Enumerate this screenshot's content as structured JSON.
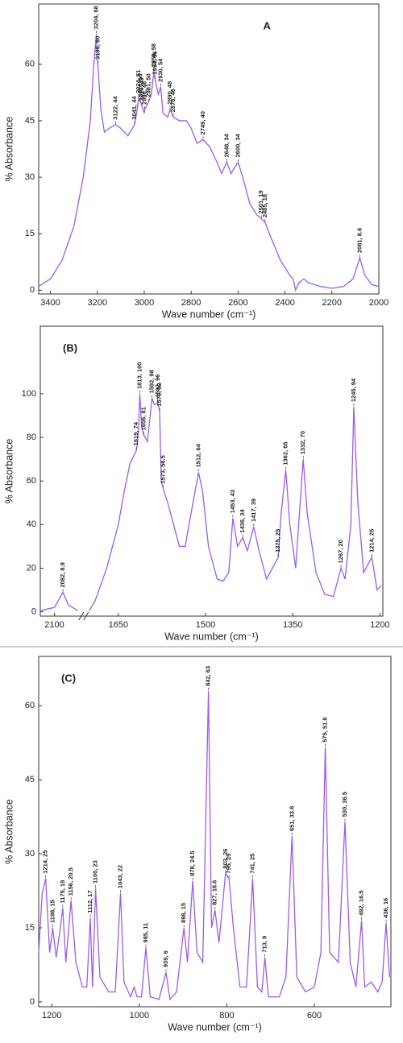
{
  "chart_data": [
    {
      "type": "line",
      "panel_label": "A",
      "ylabel": "% Absorbance",
      "xlabel": "Wave number (cm⁻¹)",
      "xlim": [
        3450,
        2000
      ],
      "xticks": [
        3400,
        3200,
        3000,
        2800,
        2600,
        2400,
        2200,
        2000
      ],
      "ylim": [
        -1,
        76
      ],
      "yticks": [
        0,
        15,
        30,
        45,
        60
      ],
      "x": [
        3450,
        3400,
        3350,
        3300,
        3260,
        3230,
        3215,
        3204,
        3198,
        3185,
        3170,
        3150,
        3122,
        3100,
        3070,
        3041,
        3030,
        3024,
        3016,
        3010,
        3000,
        2998,
        2981,
        2970,
        2959,
        2954,
        2940,
        2930,
        2920,
        2900,
        2890,
        2876,
        2850,
        2820,
        2800,
        2775,
        2749,
        2720,
        2690,
        2670,
        2648,
        2630,
        2600,
        2580,
        2550,
        2520,
        2501,
        2485,
        2460,
        2420,
        2380,
        2365,
        2355,
        2340,
        2320,
        2300,
        2250,
        2200,
        2150,
        2110,
        2081,
        2060,
        2030,
        2000
      ],
      "series": [
        {
          "color": "#9d5ce6",
          "values": [
            1,
            3,
            8,
            17,
            30,
            45,
            60,
            68,
            60,
            48,
            42,
            43,
            44,
            43,
            41,
            44,
            48,
            51,
            50,
            49,
            47,
            48,
            50,
            52,
            58,
            56,
            52,
            54,
            47,
            46,
            48,
            46,
            45,
            45,
            43,
            39,
            40,
            38,
            34,
            31,
            34,
            31,
            34,
            30,
            23,
            20,
            19,
            18,
            14,
            8,
            4,
            3,
            0,
            2,
            3,
            2,
            1,
            0.5,
            1,
            3,
            8.6,
            4,
            1.5,
            1
          ]
        }
      ],
      "annotations": [
        {
          "x": 3204,
          "y": 68,
          "label": "3204, 68"
        },
        {
          "x": 3198,
          "y": 60,
          "label": "3198, 60"
        },
        {
          "x": 3122,
          "y": 44,
          "label": "3122, 44"
        },
        {
          "x": 3041,
          "y": 44,
          "label": "3041, 44"
        },
        {
          "x": 3024,
          "y": 51,
          "label": "3024, 51"
        },
        {
          "x": 3016,
          "y": 50,
          "label": "3016, 50"
        },
        {
          "x": 3010,
          "y": 49,
          "label": "3010, 49"
        },
        {
          "x": 2959,
          "y": 58,
          "label": "2959, 58"
        },
        {
          "x": 2954,
          "y": 56,
          "label": "2954, 56"
        },
        {
          "x": 2930,
          "y": 54,
          "label": "2930, 54"
        },
        {
          "x": 2998,
          "y": 48,
          "label": "2998, 48"
        },
        {
          "x": 2981,
          "y": 50,
          "label": "2981, 50"
        },
        {
          "x": 2890,
          "y": 48,
          "label": "2890, 48"
        },
        {
          "x": 2876,
          "y": 46,
          "label": "2876, 46"
        },
        {
          "x": 2749,
          "y": 40,
          "label": "2749, 40"
        },
        {
          "x": 2648,
          "y": 34,
          "label": "2648, 34"
        },
        {
          "x": 2600,
          "y": 34,
          "label": "2600, 34"
        },
        {
          "x": 2501,
          "y": 19,
          "label": "2501, 19"
        },
        {
          "x": 2485,
          "y": 18,
          "label": "2485, 18"
        },
        {
          "x": 2081,
          "y": 8.6,
          "label": "2081, 8.6"
        }
      ]
    },
    {
      "type": "line",
      "panel_label": "(B)",
      "ylabel": "% Absorbance",
      "xlabel": "Wave number (cm⁻¹)",
      "xlim": [
        2130,
        1195
      ],
      "xbreak": [
        2050,
        1700
      ],
      "xticks": [
        2100,
        1650,
        1500,
        1350,
        1200
      ],
      "ylim": [
        -2,
        131
      ],
      "yticks": [
        0,
        20,
        40,
        60,
        80,
        100
      ],
      "x": [
        2130,
        2100,
        2082,
        2070,
        2050,
        1700,
        1690,
        1670,
        1650,
        1640,
        1630,
        1619,
        1616,
        1613,
        1610,
        1606,
        1600,
        1592,
        1588,
        1582,
        1579,
        1576,
        1573,
        1565,
        1555,
        1545,
        1535,
        1525,
        1512,
        1505,
        1495,
        1480,
        1470,
        1460,
        1453,
        1445,
        1436,
        1428,
        1417,
        1408,
        1395,
        1385,
        1375,
        1370,
        1362,
        1355,
        1345,
        1332,
        1325,
        1310,
        1295,
        1280,
        1267,
        1260,
        1250,
        1245,
        1238,
        1228,
        1214,
        1205,
        1198
      ],
      "series": [
        {
          "color": "#9d5ce6",
          "values": [
            0.5,
            2,
            8.9,
            3,
            0.5,
            0.5,
            5,
            20,
            40,
            55,
            68,
            74,
            80,
            100,
            85,
            81,
            78,
            98,
            95,
            96,
            92,
            60,
            56.5,
            50,
            40,
            30,
            30,
            45,
            64,
            55,
            30,
            15,
            14,
            18,
            43,
            30,
            34,
            28,
            39,
            28,
            15,
            20,
            25,
            45,
            65,
            40,
            20,
            70,
            45,
            18,
            8,
            7,
            20,
            15,
            40,
            94,
            50,
            18,
            25,
            10,
            12
          ]
        }
      ],
      "annotations": [
        {
          "x": 2082,
          "y": 8.9,
          "label": "2082, 8.9"
        },
        {
          "x": 1619,
          "y": 74,
          "label": "1619, 74"
        },
        {
          "x": 1613,
          "y": 100,
          "label": "1613, 100"
        },
        {
          "x": 1606,
          "y": 81,
          "label": "1606, 81"
        },
        {
          "x": 1592,
          "y": 98,
          "label": "1592, 98"
        },
        {
          "x": 1582,
          "y": 96,
          "label": "1582, 96"
        },
        {
          "x": 1579,
          "y": 92,
          "label": "1579, 92"
        },
        {
          "x": 1573,
          "y": 56.5,
          "label": "1573, 56.5"
        },
        {
          "x": 1512,
          "y": 64,
          "label": "1512, 64"
        },
        {
          "x": 1453,
          "y": 43,
          "label": "1453, 43"
        },
        {
          "x": 1436,
          "y": 34,
          "label": "1436, 34"
        },
        {
          "x": 1417,
          "y": 39,
          "label": "1417, 39"
        },
        {
          "x": 1375,
          "y": 25,
          "label": "1375, 25"
        },
        {
          "x": 1362,
          "y": 65,
          "label": "1362, 65"
        },
        {
          "x": 1332,
          "y": 70,
          "label": "1332, 70"
        },
        {
          "x": 1267,
          "y": 20,
          "label": "1267, 20"
        },
        {
          "x": 1245,
          "y": 94,
          "label": "1245, 94"
        },
        {
          "x": 1214,
          "y": 25,
          "label": "1214, 25"
        }
      ]
    },
    {
      "type": "line",
      "panel_label": "(C)",
      "ylabel": "% Absorbance",
      "xlabel": "Wave number (cm⁻¹)",
      "xlim": [
        1230,
        425
      ],
      "xticks": [
        1200,
        1000,
        800,
        600
      ],
      "ylim": [
        -1,
        70
      ],
      "yticks": [
        0,
        15,
        30,
        45,
        60
      ],
      "x": [
        1230,
        1222,
        1214,
        1205,
        1198,
        1190,
        1182,
        1175,
        1168,
        1156,
        1145,
        1130,
        1120,
        1112,
        1107,
        1100,
        1090,
        1070,
        1055,
        1043,
        1035,
        1020,
        1012,
        1005,
        995,
        985,
        975,
        955,
        939,
        930,
        915,
        898,
        890,
        878,
        868,
        855,
        842,
        835,
        827,
        818,
        803,
        795,
        785,
        770,
        755,
        741,
        730,
        720,
        713,
        705,
        680,
        665,
        651,
        640,
        620,
        600,
        585,
        575,
        565,
        545,
        530,
        518,
        505,
        492,
        485,
        470,
        455,
        445,
        436,
        428
      ],
      "series": [
        {
          "color": "#9d5ce6",
          "values": [
            10,
            22,
            25,
            10,
            15,
            9,
            14,
            19,
            8,
            20.5,
            8,
            3,
            3,
            17,
            3,
            23,
            5,
            2,
            2,
            22,
            4,
            1,
            3,
            1,
            1,
            11,
            1,
            0.5,
            6,
            0.5,
            2,
            15,
            8,
            24.5,
            10,
            8,
            63,
            15,
            18.6,
            12,
            26,
            25,
            15,
            3,
            3,
            25,
            3,
            2,
            9,
            1,
            1,
            5,
            33.6,
            5,
            2,
            3,
            10,
            51.6,
            10,
            8,
            36.5,
            8,
            3,
            16.5,
            3,
            4,
            2,
            4,
            16,
            5
          ]
        }
      ],
      "annotations": [
        {
          "x": 1214,
          "y": 25,
          "label": "1214, 25"
        },
        {
          "x": 1198,
          "y": 15,
          "label": "1198, 15"
        },
        {
          "x": 1175,
          "y": 19,
          "label": "1175, 19"
        },
        {
          "x": 1156,
          "y": 20.5,
          "label": "1156, 20.5"
        },
        {
          "x": 1112,
          "y": 17,
          "label": "1112, 17"
        },
        {
          "x": 1100,
          "y": 23,
          "label": "1100, 23"
        },
        {
          "x": 1043,
          "y": 22,
          "label": "1043, 22"
        },
        {
          "x": 985,
          "y": 11,
          "label": "985, 11"
        },
        {
          "x": 939,
          "y": 6,
          "label": "939, 6"
        },
        {
          "x": 898,
          "y": 15,
          "label": "898, 15"
        },
        {
          "x": 878,
          "y": 24.5,
          "label": "878, 24.5"
        },
        {
          "x": 842,
          "y": 63,
          "label": "842, 63"
        },
        {
          "x": 827,
          "y": 18.6,
          "label": "827, 18.6"
        },
        {
          "x": 803,
          "y": 26,
          "label": "803, 26"
        },
        {
          "x": 795,
          "y": 25,
          "label": "795, 25"
        },
        {
          "x": 741,
          "y": 25,
          "label": "741, 25"
        },
        {
          "x": 713,
          "y": 9,
          "label": "713, 9"
        },
        {
          "x": 651,
          "y": 33.6,
          "label": "651, 33.6"
        },
        {
          "x": 575,
          "y": 51.6,
          "label": "575, 51.6"
        },
        {
          "x": 530,
          "y": 36.5,
          "label": "530, 36.5"
        },
        {
          "x": 492,
          "y": 16.5,
          "label": "492, 16.5"
        },
        {
          "x": 436,
          "y": 16,
          "label": "436, 16"
        }
      ]
    }
  ]
}
